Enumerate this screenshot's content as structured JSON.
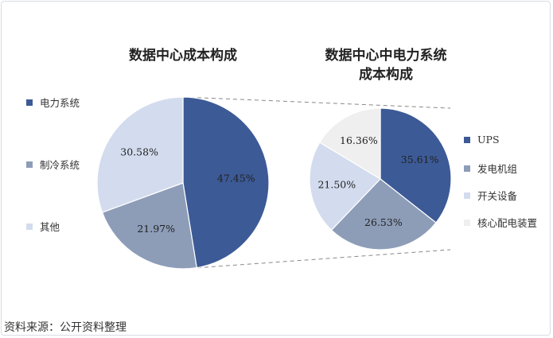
{
  "source": "资料来源：公开资料整理",
  "colors": {
    "dark_blue": "#3c5a96",
    "gray_blue": "#8d9db8",
    "light_blue": "#d3dcee",
    "light_gray": "#efefef"
  },
  "chart_data": [
    {
      "type": "pie",
      "title": "数据中心成本构成",
      "categories": [
        "电力系统",
        "制冷系统",
        "其他"
      ],
      "values": [
        47.45,
        21.97,
        30.58
      ],
      "labels": [
        "47.45%",
        "21.97%",
        "30.58%"
      ],
      "colors": [
        "#3c5a96",
        "#8d9db8",
        "#d3dcee"
      ],
      "legend_position": "left"
    },
    {
      "type": "pie",
      "title": "数据中心中电力系统成本构成",
      "title_lines": [
        "数据中心中电力系统",
        "成本构成"
      ],
      "categories": [
        "UPS",
        "发电机组",
        "开关设备",
        "核心配电装置"
      ],
      "values": [
        35.61,
        26.53,
        21.5,
        16.36
      ],
      "labels": [
        "35.61%",
        "26.53%",
        "21.50%",
        "16.36%"
      ],
      "colors": [
        "#3c5a96",
        "#8d9db8",
        "#d3dcee",
        "#efefef"
      ],
      "legend_position": "right"
    }
  ]
}
